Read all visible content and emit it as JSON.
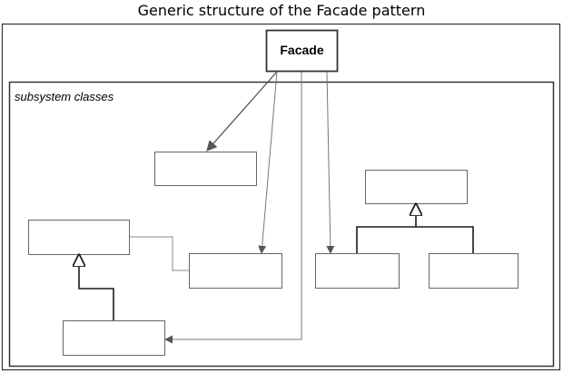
{
  "title": "Generic structure of the Facade pattern",
  "facade_label": "Facade",
  "subsystem_label": "subsystem classes",
  "colors": {
    "box_stroke": "#333333",
    "thin_line": "#808080",
    "arrow": "#555555",
    "inherit_line": "#1a1a1a",
    "background": "#ffffff"
  }
}
